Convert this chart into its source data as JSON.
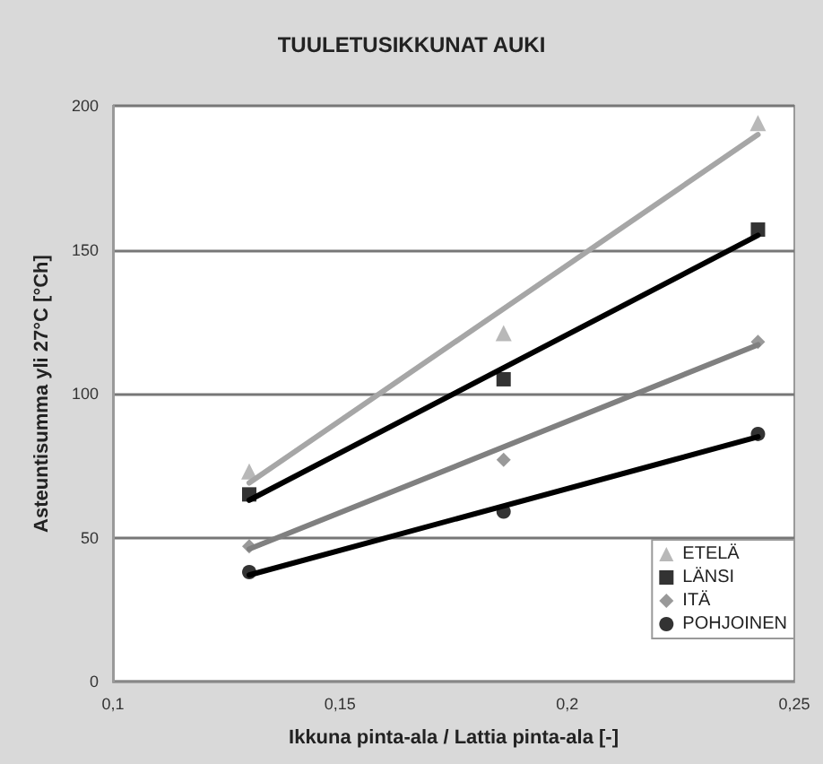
{
  "chart_data": {
    "type": "scatter",
    "title": "TUULETUSIKKUNAT AUKI",
    "xlabel": "Ikkuna pinta-ala / Lattia pinta-ala [-]",
    "ylabel": "Asteuntisumma yli 27°C [°Ch]",
    "xlim": [
      0.1,
      0.25
    ],
    "xticks": [
      {
        "value": 0.1,
        "label": "0,1"
      },
      {
        "value": 0.15,
        "label": "0,15"
      },
      {
        "value": 0.2,
        "label": "0,2"
      },
      {
        "value": 0.25,
        "label": "0,25"
      }
    ],
    "ylim": [
      0,
      200
    ],
    "yticks": [
      0,
      50,
      100,
      150,
      200
    ],
    "grid": "y",
    "legend": "bottom right",
    "series": [
      {
        "name": "ETELÄ",
        "marker": "triangle",
        "color": "#a6a6a6",
        "x": [
          0.13,
          0.186,
          0.242
        ],
        "values": [
          73,
          121,
          194
        ]
      },
      {
        "name": "LÄNSI",
        "marker": "square",
        "color": "#000000",
        "x": [
          0.13,
          0.186,
          0.242
        ],
        "values": [
          65,
          105,
          157
        ]
      },
      {
        "name": "ITÄ",
        "marker": "diamond",
        "color": "#808080",
        "x": [
          0.13,
          0.186,
          0.242
        ],
        "values": [
          47,
          77,
          118
        ]
      },
      {
        "name": "POHJOINEN",
        "marker": "circle",
        "color": "#000000",
        "x": [
          0.13,
          0.186,
          0.242
        ],
        "values": [
          38,
          59,
          86
        ]
      },
      {
        "type": "line",
        "marker": "none",
        "line_style": "solid",
        "color": "#a6a6a6",
        "x": [
          0.13,
          0.242
        ],
        "values": [
          69,
          190
        ]
      },
      {
        "type": "line",
        "marker": "none",
        "line_style": "solid",
        "color": "#000000",
        "x": [
          0.13,
          0.242
        ],
        "values": [
          63,
          155
        ]
      },
      {
        "type": "line",
        "marker": "none",
        "line_style": "solid",
        "color": "#808080",
        "x": [
          0.13,
          0.242
        ],
        "values": [
          46,
          117
        ]
      },
      {
        "type": "line",
        "marker": "none",
        "line_style": "solid",
        "color": "#000000",
        "x": [
          0.13,
          0.242
        ],
        "values": [
          37,
          85
        ]
      }
    ]
  }
}
